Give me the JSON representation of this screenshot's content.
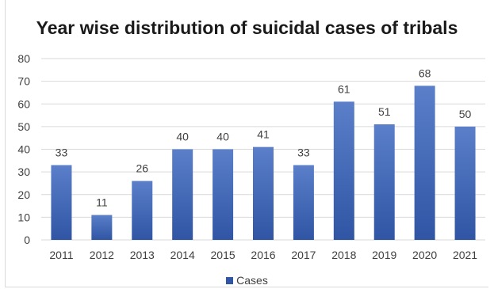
{
  "chart_data": {
    "type": "bar",
    "title": "Year wise distribution of suicidal cases of tribals",
    "categories": [
      "2011",
      "2012",
      "2013",
      "2014",
      "2015",
      "2016",
      "2017",
      "2018",
      "2019",
      "2020",
      "2021"
    ],
    "series": [
      {
        "name": "Cases",
        "values": [
          33,
          11,
          26,
          40,
          40,
          41,
          33,
          61,
          51,
          68,
          50
        ]
      }
    ],
    "ylim": [
      0,
      80
    ],
    "yticks": [
      0,
      10,
      20,
      30,
      40,
      50,
      60,
      70,
      80
    ],
    "grid": true,
    "data_labels": true,
    "legend_position": "bottom",
    "colors": {
      "bar_top": "#5b7fc9",
      "bar_bottom": "#2f55a4",
      "grid": "#d9d9d9",
      "text": "#404040"
    }
  }
}
